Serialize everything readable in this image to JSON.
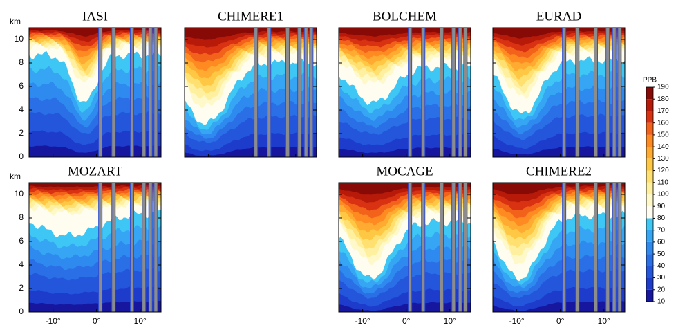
{
  "chart_data": {
    "type": "contour",
    "panels": [
      {
        "title": "IASI"
      },
      {
        "title": "CHIMERE1"
      },
      {
        "title": "BOLCHEM"
      },
      {
        "title": "EURAD"
      },
      {
        "title": "MOZART"
      },
      {
        "title": "MOCAGE"
      },
      {
        "title": "CHIMERE2"
      }
    ],
    "ylabel": "km",
    "ylim": [
      0,
      11
    ],
    "yticks": [
      0,
      2,
      4,
      6,
      8,
      10
    ],
    "xlim": [
      -15.5,
      14.8
    ],
    "xticks": [
      {
        "value": -10,
        "label": "-10°"
      },
      {
        "value": 0,
        "label": "0°"
      },
      {
        "value": 10,
        "label": "10°"
      }
    ],
    "colorbar": {
      "label": "PPB",
      "lim": [
        10,
        190
      ],
      "ticks": [
        10,
        20,
        30,
        40,
        50,
        60,
        70,
        80,
        90,
        100,
        110,
        120,
        130,
        140,
        150,
        160,
        170,
        180,
        190
      ],
      "colors": [
        "#16169e",
        "#1e3ccc",
        "#2456dc",
        "#2a6fe6",
        "#2f8aef",
        "#36a6f4",
        "#3ec6f4",
        "#fffdf0",
        "#fff8c8",
        "#fff0a0",
        "#ffe070",
        "#ffc844",
        "#ffaa30",
        "#ff8a22",
        "#f2621a",
        "#d83212",
        "#b81a0a",
        "#880a06"
      ]
    }
  }
}
